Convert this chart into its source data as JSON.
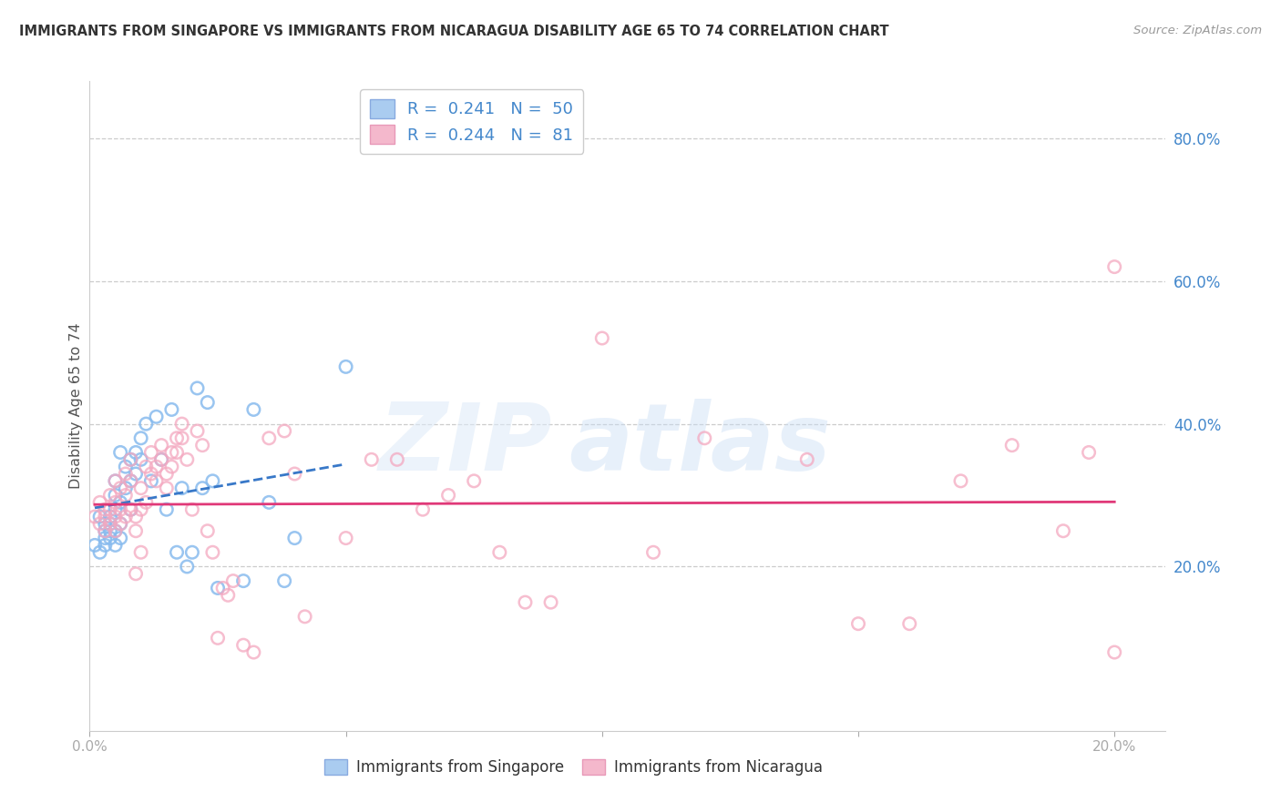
{
  "title": "IMMIGRANTS FROM SINGAPORE VS IMMIGRANTS FROM NICARAGUA DISABILITY AGE 65 TO 74 CORRELATION CHART",
  "source": "Source: ZipAtlas.com",
  "ylabel": "Disability Age 65 to 74",
  "right_ytick_vals": [
    0.2,
    0.4,
    0.6,
    0.8
  ],
  "right_ytick_labels": [
    "20.0%",
    "40.0%",
    "60.0%",
    "80.0%"
  ],
  "xlim": [
    0.0,
    0.21
  ],
  "ylim": [
    -0.03,
    0.88
  ],
  "singapore_fill_color": "#aaccf0",
  "nicaragua_fill_color": "#f4b8cc",
  "singapore_edge_color": "#88aae0",
  "nicaragua_edge_color": "#e899b8",
  "singapore_scatter_color": "#88bbee",
  "nicaragua_scatter_color": "#f4a8c0",
  "singapore_line_color": "#3878c8",
  "nicaragua_line_color": "#e03878",
  "grid_color": "#cccccc",
  "background_color": "#ffffff",
  "title_color": "#333333",
  "right_axis_color": "#4488cc",
  "value_color": "#4488cc",
  "singapore_R": 0.241,
  "singapore_N": 50,
  "nicaragua_R": 0.244,
  "nicaragua_N": 81,
  "singapore_x": [
    0.001,
    0.002,
    0.002,
    0.003,
    0.003,
    0.003,
    0.003,
    0.004,
    0.004,
    0.004,
    0.004,
    0.005,
    0.005,
    0.005,
    0.005,
    0.005,
    0.006,
    0.006,
    0.006,
    0.006,
    0.007,
    0.007,
    0.008,
    0.008,
    0.008,
    0.009,
    0.009,
    0.01,
    0.01,
    0.011,
    0.012,
    0.013,
    0.014,
    0.015,
    0.016,
    0.017,
    0.018,
    0.019,
    0.02,
    0.021,
    0.022,
    0.023,
    0.024,
    0.025,
    0.03,
    0.032,
    0.035,
    0.038,
    0.04,
    0.05
  ],
  "singapore_y": [
    0.23,
    0.22,
    0.27,
    0.26,
    0.24,
    0.25,
    0.23,
    0.25,
    0.24,
    0.26,
    0.27,
    0.3,
    0.28,
    0.25,
    0.23,
    0.32,
    0.29,
    0.26,
    0.24,
    0.36,
    0.34,
    0.31,
    0.35,
    0.32,
    0.28,
    0.36,
    0.33,
    0.38,
    0.35,
    0.4,
    0.32,
    0.41,
    0.35,
    0.28,
    0.42,
    0.22,
    0.31,
    0.2,
    0.22,
    0.45,
    0.31,
    0.43,
    0.32,
    0.17,
    0.18,
    0.42,
    0.29,
    0.18,
    0.24,
    0.48
  ],
  "nicaragua_x": [
    0.001,
    0.002,
    0.002,
    0.003,
    0.003,
    0.003,
    0.004,
    0.004,
    0.004,
    0.005,
    0.005,
    0.005,
    0.005,
    0.006,
    0.006,
    0.006,
    0.007,
    0.007,
    0.007,
    0.008,
    0.008,
    0.008,
    0.009,
    0.009,
    0.009,
    0.01,
    0.01,
    0.01,
    0.011,
    0.011,
    0.012,
    0.012,
    0.013,
    0.013,
    0.014,
    0.014,
    0.015,
    0.015,
    0.016,
    0.016,
    0.017,
    0.017,
    0.018,
    0.018,
    0.019,
    0.02,
    0.021,
    0.022,
    0.023,
    0.024,
    0.025,
    0.026,
    0.027,
    0.028,
    0.03,
    0.032,
    0.035,
    0.038,
    0.04,
    0.042,
    0.05,
    0.055,
    0.06,
    0.065,
    0.07,
    0.075,
    0.08,
    0.085,
    0.09,
    0.1,
    0.11,
    0.12,
    0.14,
    0.15,
    0.16,
    0.17,
    0.18,
    0.19,
    0.195,
    0.2,
    0.2
  ],
  "nicaragua_y": [
    0.27,
    0.26,
    0.29,
    0.28,
    0.25,
    0.27,
    0.26,
    0.28,
    0.3,
    0.29,
    0.27,
    0.25,
    0.32,
    0.31,
    0.28,
    0.26,
    0.33,
    0.3,
    0.27,
    0.35,
    0.32,
    0.28,
    0.27,
    0.25,
    0.19,
    0.22,
    0.28,
    0.31,
    0.34,
    0.29,
    0.36,
    0.33,
    0.34,
    0.32,
    0.37,
    0.35,
    0.33,
    0.31,
    0.36,
    0.34,
    0.38,
    0.36,
    0.4,
    0.38,
    0.35,
    0.28,
    0.39,
    0.37,
    0.25,
    0.22,
    0.1,
    0.17,
    0.16,
    0.18,
    0.09,
    0.08,
    0.38,
    0.39,
    0.33,
    0.13,
    0.24,
    0.35,
    0.35,
    0.28,
    0.3,
    0.32,
    0.22,
    0.15,
    0.15,
    0.52,
    0.22,
    0.38,
    0.35,
    0.12,
    0.12,
    0.32,
    0.37,
    0.25,
    0.36,
    0.62,
    0.08
  ]
}
